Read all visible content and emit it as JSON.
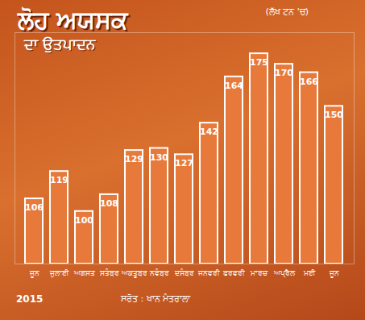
{
  "chart_data": {
    "type": "bar",
    "title": "ਲੋਹ ਅਯਸਕ",
    "subtitle": "ਦਾ ਉਤਪਾਦਨ",
    "ylabel": "(ਲੱਖ ਟਨ 'ਚ)",
    "categories": [
      "ਜੂਨ",
      "ਜੁਲਾਈ",
      "ਅਗਸਤ",
      "ਸਤੰਬਰ",
      "ਅਕਤੂਬਰ",
      "ਨਵੰਬਰ",
      "ਦਸੰਬਰ",
      "ਜਨਵਰੀ",
      "ਫਰਵਰੀ",
      "ਮਾਰਚ",
      "ਅਪ੍ਰੈਲ",
      "ਮਈ",
      "ਜੂਨ"
    ],
    "values": [
      106,
      119,
      100,
      108,
      129,
      130,
      127,
      142,
      164,
      175,
      170,
      166,
      150
    ],
    "color": "#e7793a",
    "ylim": [
      75,
      185
    ],
    "yticks": [],
    "grid": false,
    "data_labels": true,
    "tick_labels": "x",
    "annotations": [
      "2015",
      "ਸਰੋਤ : ਖਾਨ ਮੰਤਰਾਲਾ"
    ]
  }
}
